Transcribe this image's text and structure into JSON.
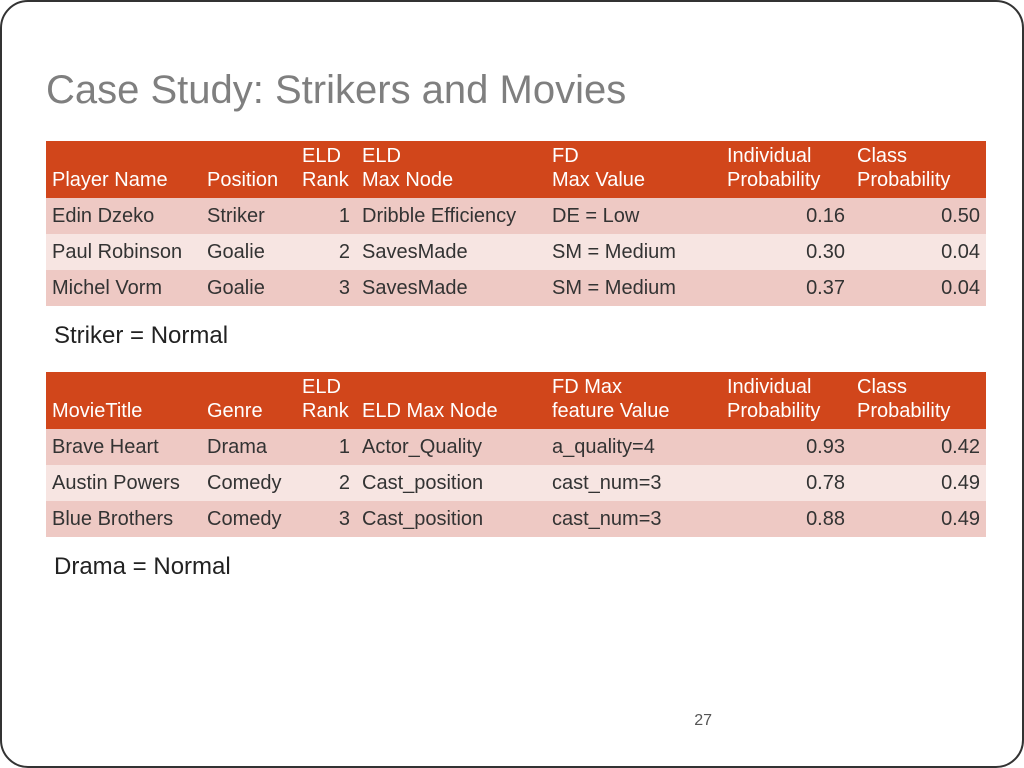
{
  "title": "Case Study: Strikers and Movies",
  "page_number": "27",
  "colors": {
    "header_bg": "#d1461b",
    "header_text": "#ffffff",
    "row_odd": "#eec9c4",
    "row_even": "#f7e5e2",
    "title_color": "#7f7f7f"
  },
  "table1": {
    "headers": {
      "c0": "Player Name",
      "c1": "Position",
      "c2": "ELD\nRank",
      "c3": "ELD\nMax Node",
      "c4": "FD\nMax Value",
      "c5": "Individual\nProbability",
      "c6": "Class\nProbability"
    },
    "rows": [
      {
        "c0": "Edin Dzeko",
        "c1": "Striker",
        "c2": "1",
        "c3": "Dribble Efficiency",
        "c4": "DE = Low",
        "c5": "0.16",
        "c6": "0.50"
      },
      {
        "c0": "Paul Robinson",
        "c1": "Goalie",
        "c2": "2",
        "c3": "SavesMade",
        "c4": "SM = Medium",
        "c5": "0.30",
        "c6": "0.04"
      },
      {
        "c0": "Michel Vorm",
        "c1": "Goalie",
        "c2": "3",
        "c3": "SavesMade",
        "c4": "SM = Medium",
        "c5": "0.37",
        "c6": "0.04"
      }
    ],
    "note": "Striker = Normal"
  },
  "table2": {
    "headers": {
      "c0": "MovieTitle",
      "c1": "Genre",
      "c2": "ELD\nRank",
      "c3": "ELD Max Node",
      "c4": "FD Max\nfeature Value",
      "c5": "Individual\nProbability",
      "c6": "Class\nProbability"
    },
    "rows": [
      {
        "c0": "Brave Heart",
        "c1": "Drama",
        "c2": "1",
        "c3": "Actor_Quality",
        "c4": "a_quality=4",
        "c5": "0.93",
        "c6": "0.42"
      },
      {
        "c0": "Austin Powers",
        "c1": "Comedy",
        "c2": "2",
        "c3": "Cast_position",
        "c4": "cast_num=3",
        "c5": "0.78",
        "c6": "0.49"
      },
      {
        "c0": "Blue Brothers",
        "c1": "Comedy",
        "c2": "3",
        "c3": "Cast_position",
        "c4": "cast_num=3",
        "c5": "0.88",
        "c6": "0.49"
      }
    ],
    "note": "Drama = Normal"
  },
  "col_widths": {
    "c0": "155px",
    "c1": "95px",
    "c2": "60px",
    "c3": "190px",
    "c4": "175px",
    "c5": "130px",
    "c6": "135px"
  },
  "alignment": {
    "c2": "right",
    "c5": "right",
    "c6": "right"
  }
}
